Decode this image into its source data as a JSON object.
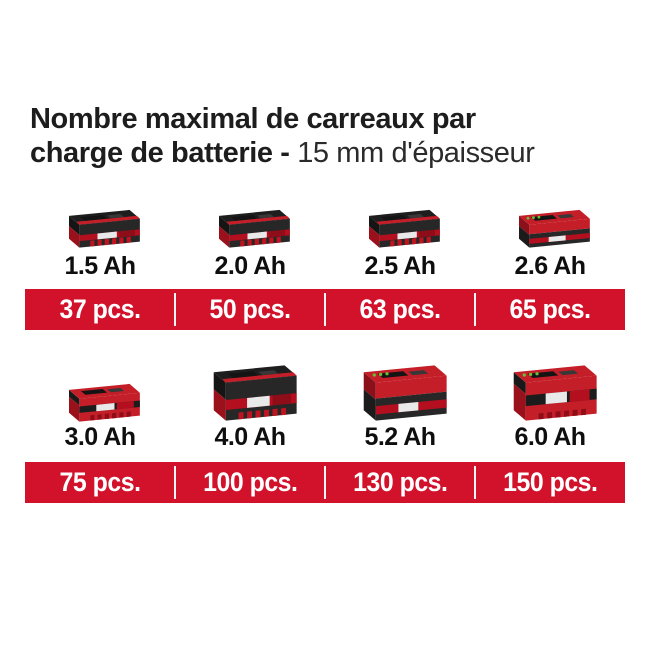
{
  "title": {
    "line1": "Nombre maximal de carreaux par",
    "line2_bold": "charge de batterie - ",
    "line2_regular": "15 mm d'épaisseur"
  },
  "colors": {
    "band_red": "#d2112b",
    "battery_red": "#c41f28",
    "battery_red_dark": "#9a111c",
    "battery_stripe_red": "#b40f1f",
    "battery_dark": "#272727",
    "battery_top_dark": "#1e1e1e",
    "led_green": "#6abf3a",
    "title_text": "#1d1d1d",
    "band_text": "#ffffff"
  },
  "rows": [
    {
      "batteries": [
        {
          "capacity": "1.5 Ah",
          "pcs": "37 pcs.",
          "variant": "dark",
          "size": "slim",
          "leds": false
        },
        {
          "capacity": "2.0 Ah",
          "pcs": "50 pcs.",
          "variant": "dark",
          "size": "slim",
          "leds": false
        },
        {
          "capacity": "2.5 Ah",
          "pcs": "63 pcs.",
          "variant": "dark",
          "size": "slim",
          "leds": false
        },
        {
          "capacity": "2.6 Ah",
          "pcs": "65 pcs.",
          "variant": "redtop",
          "size": "slim",
          "leds": true
        }
      ]
    },
    {
      "batteries": [
        {
          "capacity": "3.0 Ah",
          "pcs": "75 pcs.",
          "variant": "red",
          "size": "slim",
          "leds": false
        },
        {
          "capacity": "4.0 Ah",
          "pcs": "100 pcs.",
          "variant": "dark",
          "size": "large",
          "leds": false
        },
        {
          "capacity": "5.2 Ah",
          "pcs": "130 pcs.",
          "variant": "redtop",
          "size": "large",
          "leds": true
        },
        {
          "capacity": "6.0 Ah",
          "pcs": "150 pcs.",
          "variant": "red",
          "size": "large",
          "leds": true
        }
      ]
    }
  ],
  "chart_data": {
    "type": "table",
    "title": "Nombre maximal de carreaux par charge de batterie - 15 mm d'épaisseur",
    "categories": [
      "1.5 Ah",
      "2.0 Ah",
      "2.5 Ah",
      "2.6 Ah",
      "3.0 Ah",
      "4.0 Ah",
      "5.2 Ah",
      "6.0 Ah"
    ],
    "values": [
      37,
      50,
      63,
      65,
      75,
      100,
      130,
      150
    ],
    "unit": "pcs."
  }
}
